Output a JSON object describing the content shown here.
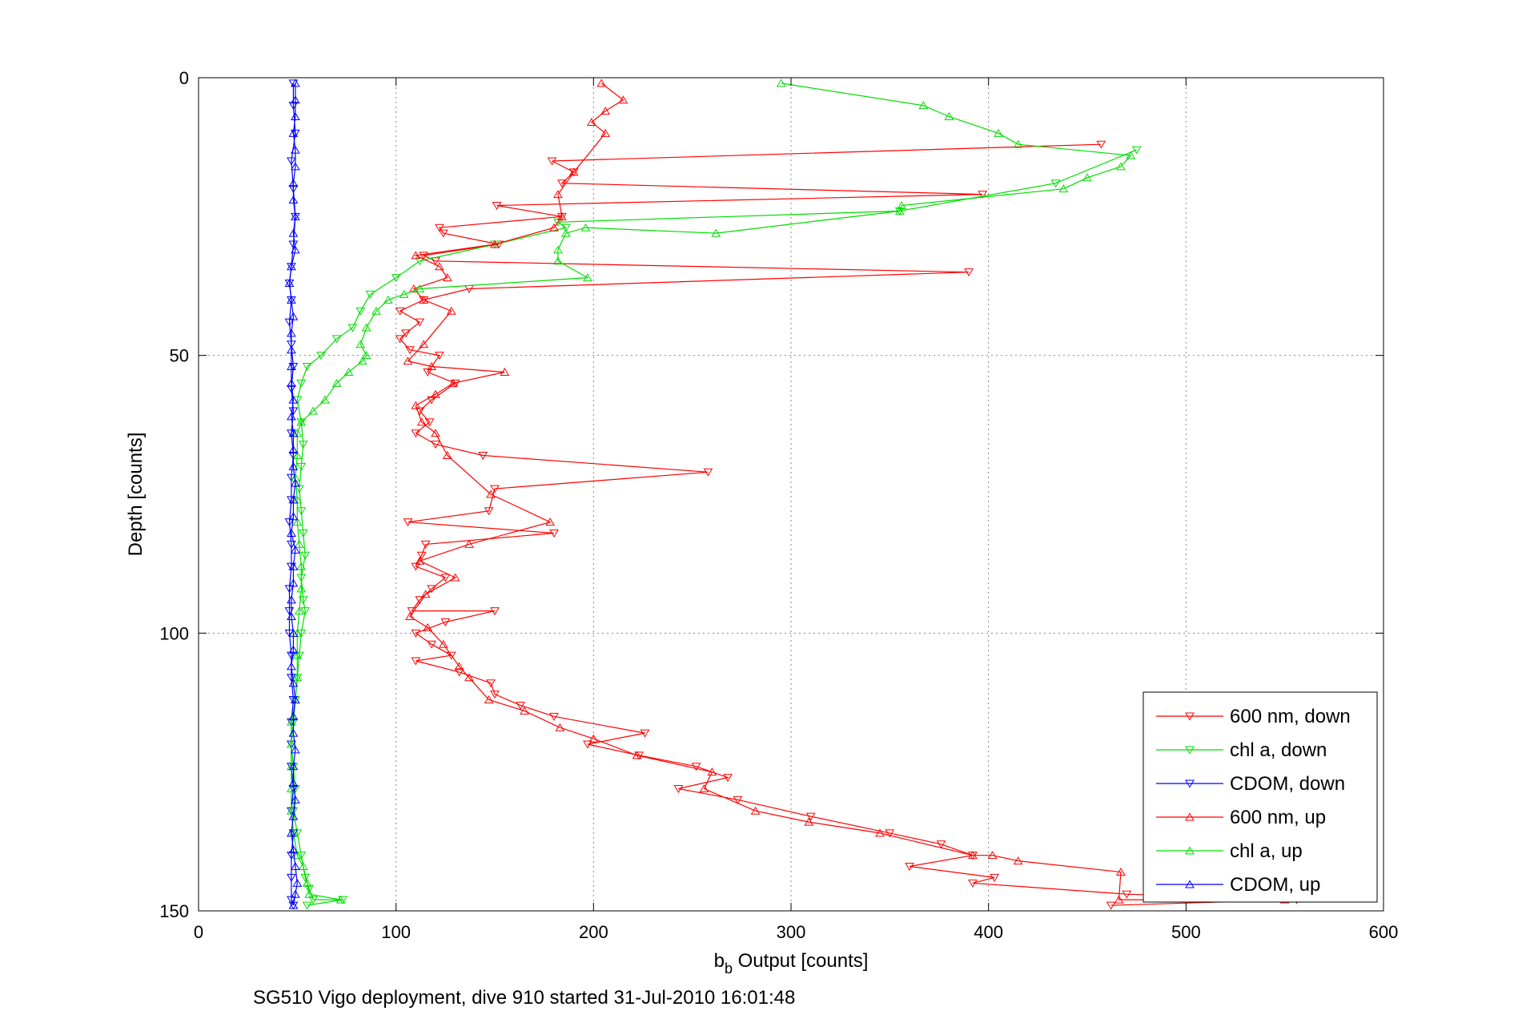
{
  "chart_data": {
    "type": "line",
    "xlabel_main": "b",
    "xlabel_sub": "b",
    "xlabel_rest": " Output [counts]",
    "ylabel": "Depth [counts]",
    "caption": "SG510 Vigo deployment, dive 910 started 31-Jul-2010 16:01:48",
    "xlim": [
      0,
      600
    ],
    "ylim": [
      0,
      150
    ],
    "y_reversed": true,
    "grid": true,
    "legend_position": "bottom-right",
    "x_ticks": [
      "0",
      "100",
      "200",
      "300",
      "400",
      "500",
      "600"
    ],
    "y_ticks": [
      "0",
      "50",
      "100",
      "150"
    ],
    "series": [
      {
        "name": "600 nm, down",
        "color": "#ff0000",
        "marker": "triangle-down",
        "points": [
          [
            457,
            12
          ],
          [
            179,
            15
          ],
          [
            190,
            17
          ],
          [
            184,
            19
          ],
          [
            397,
            21
          ],
          [
            151,
            23
          ],
          [
            184,
            25
          ],
          [
            122,
            27
          ],
          [
            124,
            28
          ],
          [
            152,
            30
          ],
          [
            114,
            32
          ],
          [
            120,
            33
          ],
          [
            390,
            35
          ],
          [
            137,
            38
          ],
          [
            114,
            40
          ],
          [
            102,
            42
          ],
          [
            112,
            44
          ],
          [
            105,
            46
          ],
          [
            102,
            47
          ],
          [
            107,
            49
          ],
          [
            122,
            50
          ],
          [
            116,
            53
          ],
          [
            130,
            55
          ],
          [
            118,
            58
          ],
          [
            112,
            60
          ],
          [
            117,
            62
          ],
          [
            110,
            64
          ],
          [
            120,
            66
          ],
          [
            144,
            68
          ],
          [
            258,
            71
          ],
          [
            150,
            74
          ],
          [
            147,
            78
          ],
          [
            106,
            80
          ],
          [
            180,
            82
          ],
          [
            115,
            84
          ],
          [
            113,
            86
          ],
          [
            110,
            88
          ],
          [
            125,
            90
          ],
          [
            118,
            92
          ],
          [
            112,
            94
          ],
          [
            108,
            96
          ],
          [
            150,
            96
          ],
          [
            125,
            98
          ],
          [
            110,
            100
          ],
          [
            118,
            102
          ],
          [
            128,
            104
          ],
          [
            110,
            105
          ],
          [
            132,
            107
          ],
          [
            148,
            109
          ],
          [
            150,
            111
          ],
          [
            163,
            113
          ],
          [
            180,
            115
          ],
          [
            226,
            118
          ],
          [
            197,
            120
          ],
          [
            223,
            122
          ],
          [
            252,
            124
          ],
          [
            268,
            126
          ],
          [
            243,
            128
          ],
          [
            273,
            130
          ],
          [
            310,
            133
          ],
          [
            350,
            136
          ],
          [
            376,
            138
          ],
          [
            392,
            140
          ],
          [
            360,
            142
          ],
          [
            403,
            144
          ],
          [
            392,
            145
          ],
          [
            470,
            147
          ],
          [
            556,
            148
          ],
          [
            462,
            149
          ]
        ]
      },
      {
        "name": "chl a, down",
        "color": "#00dd00",
        "marker": "triangle-down",
        "points": [
          [
            475,
            13
          ],
          [
            434,
            19
          ],
          [
            355,
            24
          ],
          [
            182,
            26
          ],
          [
            186,
            27
          ],
          [
            150,
            30
          ],
          [
            112,
            33
          ],
          [
            100,
            36
          ],
          [
            87,
            39
          ],
          [
            82,
            42
          ],
          [
            78,
            45
          ],
          [
            70,
            47
          ],
          [
            62,
            50
          ],
          [
            55,
            52
          ],
          [
            52,
            55
          ],
          [
            50,
            58
          ],
          [
            52,
            62
          ],
          [
            53,
            66
          ],
          [
            52,
            70
          ],
          [
            51,
            74
          ],
          [
            52,
            78
          ],
          [
            53,
            82
          ],
          [
            54,
            86
          ],
          [
            52,
            90
          ],
          [
            53,
            94
          ],
          [
            54,
            96
          ],
          [
            52,
            100
          ],
          [
            51,
            104
          ],
          [
            50,
            108
          ],
          [
            49,
            112
          ],
          [
            48,
            116
          ],
          [
            47,
            120
          ],
          [
            48,
            124
          ],
          [
            49,
            128
          ],
          [
            48,
            132
          ],
          [
            50,
            136
          ],
          [
            52,
            140
          ],
          [
            54,
            144
          ],
          [
            56,
            146
          ],
          [
            58,
            148
          ],
          [
            73,
            148
          ],
          [
            55,
            149
          ]
        ]
      },
      {
        "name": "CDOM, down",
        "color": "#0000ff",
        "marker": "triangle-down",
        "points": [
          [
            48,
            1
          ],
          [
            48,
            5
          ],
          [
            49,
            10
          ],
          [
            47,
            15
          ],
          [
            48,
            20
          ],
          [
            49,
            25
          ],
          [
            48,
            30
          ],
          [
            47,
            34
          ],
          [
            46,
            37
          ],
          [
            47,
            40
          ],
          [
            46,
            44
          ],
          [
            47,
            48
          ],
          [
            48,
            52
          ],
          [
            47,
            56
          ],
          [
            48,
            60
          ],
          [
            47,
            64
          ],
          [
            48,
            68
          ],
          [
            47,
            72
          ],
          [
            47,
            76
          ],
          [
            46,
            80
          ],
          [
            47,
            84
          ],
          [
            47,
            88
          ],
          [
            46,
            92
          ],
          [
            46,
            96
          ],
          [
            46,
            100
          ],
          [
            47,
            104
          ],
          [
            47,
            108
          ],
          [
            48,
            112
          ],
          [
            47,
            116
          ],
          [
            47,
            120
          ],
          [
            47,
            124
          ],
          [
            48,
            128
          ],
          [
            47,
            132
          ],
          [
            48,
            136
          ],
          [
            47,
            140
          ],
          [
            47,
            144
          ],
          [
            47,
            148
          ],
          [
            48,
            149
          ]
        ]
      },
      {
        "name": "600 nm, up",
        "color": "#ff0000",
        "marker": "triangle-up",
        "points": [
          [
            550,
            148
          ],
          [
            466,
            148
          ],
          [
            467,
            143
          ],
          [
            415,
            141
          ],
          [
            402,
            140
          ],
          [
            392,
            140
          ],
          [
            345,
            136
          ],
          [
            309,
            134
          ],
          [
            282,
            132
          ],
          [
            256,
            128
          ],
          [
            260,
            125
          ],
          [
            222,
            122
          ],
          [
            200,
            119
          ],
          [
            183,
            117
          ],
          [
            165,
            114
          ],
          [
            147,
            112
          ],
          [
            137,
            108
          ],
          [
            132,
            106
          ],
          [
            124,
            102
          ],
          [
            116,
            99
          ],
          [
            107,
            97
          ],
          [
            115,
            93
          ],
          [
            130,
            90
          ],
          [
            112,
            87
          ],
          [
            137,
            84
          ],
          [
            178,
            80
          ],
          [
            148,
            75
          ],
          [
            126,
            68
          ],
          [
            120,
            64
          ],
          [
            113,
            62
          ],
          [
            110,
            59
          ],
          [
            120,
            57
          ],
          [
            129,
            55
          ],
          [
            155,
            53
          ],
          [
            118,
            52
          ],
          [
            106,
            51
          ],
          [
            114,
            48
          ],
          [
            128,
            42
          ],
          [
            114,
            40
          ],
          [
            109,
            38
          ],
          [
            126,
            36
          ],
          [
            122,
            34
          ],
          [
            110,
            32
          ],
          [
            150,
            30
          ],
          [
            180,
            27
          ],
          [
            184,
            25
          ],
          [
            182,
            21
          ],
          [
            190,
            17
          ],
          [
            206,
            10
          ],
          [
            199,
            8
          ],
          [
            206,
            6
          ],
          [
            215,
            4
          ],
          [
            204,
            1
          ]
        ]
      },
      {
        "name": "chl a, up",
        "color": "#00dd00",
        "marker": "triangle-up",
        "points": [
          [
            72,
            148
          ],
          [
            56,
            147
          ],
          [
            55,
            145
          ],
          [
            53,
            142
          ],
          [
            50,
            140
          ],
          [
            48,
            136
          ],
          [
            47,
            132
          ],
          [
            47,
            128
          ],
          [
            47,
            124
          ],
          [
            47,
            120
          ],
          [
            47,
            116
          ],
          [
            49,
            112
          ],
          [
            50,
            108
          ],
          [
            50,
            104
          ],
          [
            50,
            100
          ],
          [
            51,
            96
          ],
          [
            52,
            92
          ],
          [
            52,
            88
          ],
          [
            51,
            84
          ],
          [
            50,
            80
          ],
          [
            50,
            76
          ],
          [
            49,
            72
          ],
          [
            50,
            68
          ],
          [
            50,
            64
          ],
          [
            52,
            62
          ],
          [
            58,
            60
          ],
          [
            64,
            58
          ],
          [
            70,
            55
          ],
          [
            76,
            53
          ],
          [
            83,
            51
          ],
          [
            85,
            50
          ],
          [
            82,
            48
          ],
          [
            85,
            45
          ],
          [
            90,
            42
          ],
          [
            96,
            40
          ],
          [
            104,
            39
          ],
          [
            112,
            38
          ],
          [
            197,
            36
          ],
          [
            182,
            33
          ],
          [
            182,
            31
          ],
          [
            186,
            28
          ],
          [
            196,
            27
          ],
          [
            262,
            28
          ],
          [
            355,
            24
          ],
          [
            356,
            23
          ],
          [
            438,
            20
          ],
          [
            450,
            18
          ],
          [
            467,
            16
          ],
          [
            472,
            14
          ],
          [
            415,
            12
          ],
          [
            405,
            10
          ],
          [
            380,
            7
          ],
          [
            367,
            5
          ],
          [
            295,
            1
          ]
        ]
      },
      {
        "name": "CDOM, up",
        "color": "#0000ff",
        "marker": "triangle-up",
        "points": [
          [
            48,
            149
          ],
          [
            49,
            147
          ],
          [
            50,
            145
          ],
          [
            49,
            142
          ],
          [
            48,
            139
          ],
          [
            47,
            136
          ],
          [
            48,
            133
          ],
          [
            49,
            130
          ],
          [
            48,
            127
          ],
          [
            48,
            124
          ],
          [
            49,
            121
          ],
          [
            48,
            118
          ],
          [
            48,
            115
          ],
          [
            49,
            112
          ],
          [
            48,
            109
          ],
          [
            47,
            106
          ],
          [
            48,
            103
          ],
          [
            48,
            100
          ],
          [
            47,
            97
          ],
          [
            47,
            94
          ],
          [
            48,
            91
          ],
          [
            48,
            88
          ],
          [
            49,
            85
          ],
          [
            47,
            82
          ],
          [
            48,
            79
          ],
          [
            48,
            76
          ],
          [
            49,
            73
          ],
          [
            48,
            70
          ],
          [
            48,
            67
          ],
          [
            48,
            64
          ],
          [
            47,
            61
          ],
          [
            48,
            58
          ],
          [
            47,
            55
          ],
          [
            47,
            52
          ],
          [
            47,
            49
          ],
          [
            47,
            46
          ],
          [
            48,
            43
          ],
          [
            47,
            40
          ],
          [
            46,
            37
          ],
          [
            47,
            34
          ],
          [
            49,
            31
          ],
          [
            48,
            28
          ],
          [
            49,
            25
          ],
          [
            48,
            22
          ],
          [
            48,
            19
          ],
          [
            49,
            16
          ],
          [
            49,
            13
          ],
          [
            48,
            10
          ],
          [
            49,
            7
          ],
          [
            49,
            4
          ],
          [
            49,
            1
          ]
        ]
      }
    ]
  }
}
